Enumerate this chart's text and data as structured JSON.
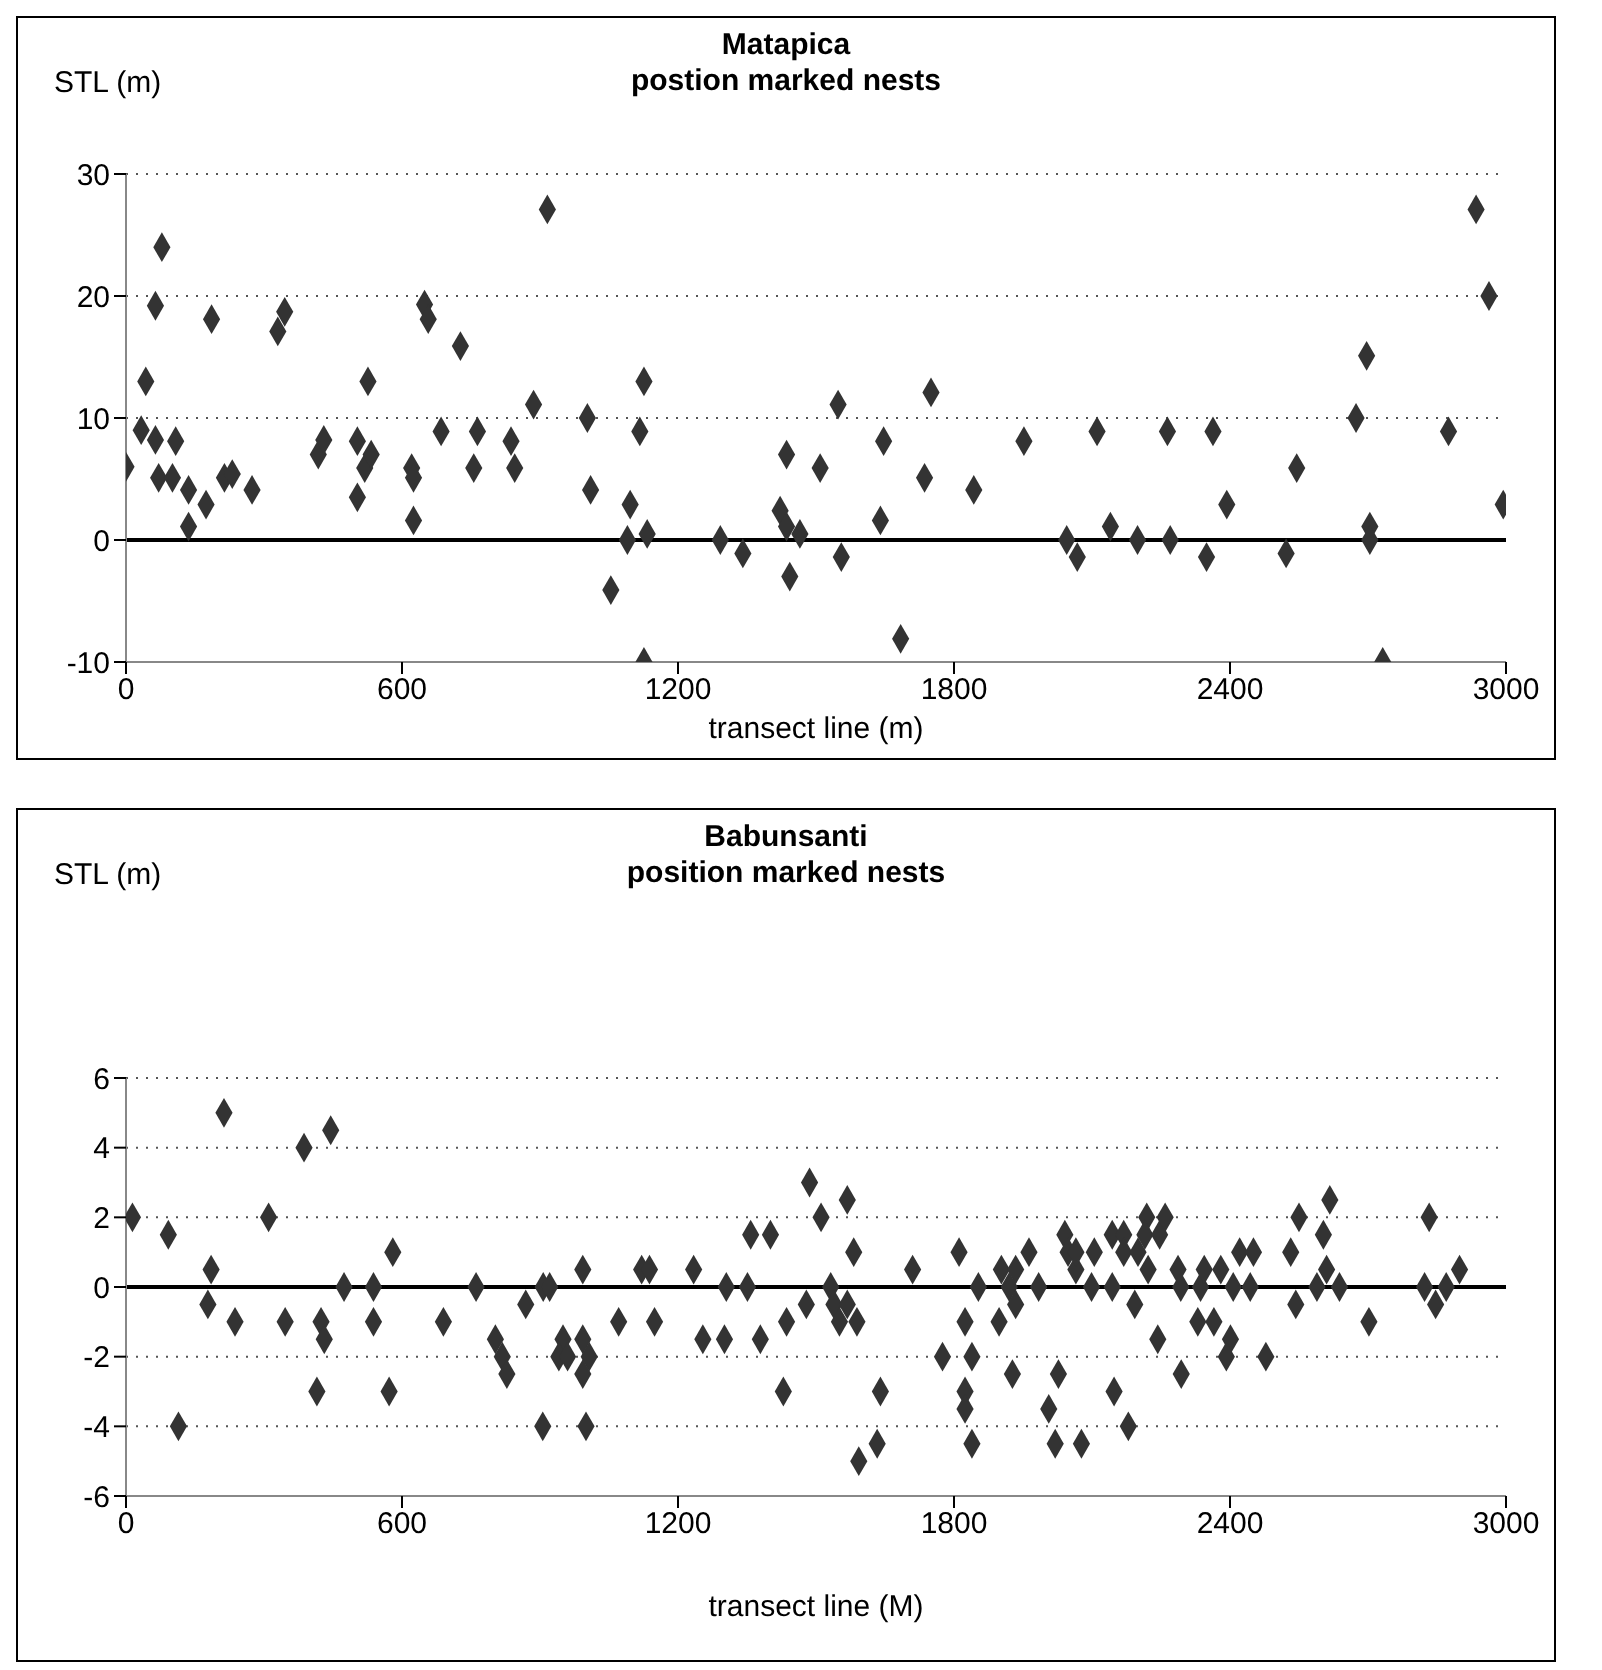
{
  "chart_data": [
    {
      "type": "scatter",
      "title": "Matapica",
      "subtitle": "postion marked nests",
      "xlabel": "transect line (m)",
      "ylabel": "STL (m)",
      "marker": "diamond",
      "grid": "y",
      "legend": false,
      "xlim": [
        0,
        3000
      ],
      "xticks": [
        0,
        600,
        1200,
        1800,
        2400,
        3000
      ],
      "ylim": [
        -10,
        30
      ],
      "yticks": [
        -10,
        0,
        10,
        20,
        30
      ],
      "ref_lines": [
        {
          "axis": "y",
          "value": 0,
          "color": "#000000"
        }
      ],
      "series": [
        {
          "color": "#333333",
          "x": [
            0,
            33,
            43,
            64,
            64,
            78,
            71,
            101,
            108,
            136,
            136,
            174,
            186,
            214,
            231,
            274,
            330,
            345,
            418,
            430,
            503,
            503,
            519,
            533,
            526,
            621,
            625,
            625,
            649,
            657,
            685,
            727,
            756,
            764,
            837,
            845,
            886,
            916,
            1003,
            1010,
            1054,
            1096,
            1090,
            1117,
            1126,
            1133,
            1126,
            1292,
            1341,
            1422,
            1436,
            1436,
            1465,
            1443,
            1509,
            1548,
            1555,
            1640,
            1647,
            1684,
            1736,
            1750,
            1843,
            1952,
            2045,
            2068,
            2111,
            2140,
            2199,
            2264,
            2270,
            2349,
            2363,
            2393,
            2522,
            2545,
            2674,
            2697,
            2704,
            2704,
            2732,
            2875,
            2935,
            2963,
            2994
          ],
          "values": [
            6,
            9,
            13,
            8.2,
            19.2,
            24,
            5.1,
            5.1,
            8.1,
            4.1,
            1.1,
            2.9,
            18.1,
            5.1,
            5.4,
            4.1,
            17.1,
            18.7,
            7,
            8.2,
            8.1,
            3.5,
            5.9,
            7,
            13,
            5.9,
            5.1,
            1.6,
            19.3,
            18.1,
            8.9,
            15.9,
            5.9,
            8.9,
            8.1,
            5.9,
            11.1,
            27.1,
            10,
            4.1,
            -4.1,
            2.9,
            0,
            8.9,
            13,
            0.5,
            -10,
            0,
            -1.1,
            2.4,
            7,
            1.1,
            0.5,
            -3,
            5.9,
            11.1,
            -1.4,
            1.6,
            8.1,
            -8.1,
            5.1,
            12.1,
            4.1,
            8.1,
            0,
            -1.4,
            8.9,
            1.1,
            0,
            8.9,
            0,
            -1.4,
            8.9,
            2.9,
            -1.1,
            5.9,
            10,
            15.1,
            1.1,
            0,
            -10,
            8.9,
            27.1,
            20,
            2.9
          ]
        }
      ]
    },
    {
      "type": "scatter",
      "title": "Babunsanti",
      "subtitle": "position marked nests",
      "xlabel": "transect line (M)",
      "ylabel": "STL (m)",
      "marker": "diamond",
      "grid": "y",
      "legend": false,
      "xlim": [
        0,
        3000
      ],
      "xticks": [
        0,
        600,
        1200,
        1800,
        2400,
        3000
      ],
      "ylim": [
        -6,
        6
      ],
      "yticks": [
        -6,
        -4,
        -2,
        0,
        2,
        4,
        6
      ],
      "ref_lines": [
        {
          "axis": "y",
          "value": 0,
          "color": "#000000"
        }
      ],
      "series": [
        {
          "color": "#333333",
          "x": [
            14,
            92,
            114,
            185,
            178,
            213,
            237,
            310,
            346,
            387,
            424,
            431,
            415,
            445,
            474,
            538,
            538,
            572,
            580,
            690,
            761,
            803,
            818,
            828,
            869,
            906,
            907,
            921,
            950,
            941,
            960,
            993,
            993,
            1007,
            993,
            1000,
            1071,
            1121,
            1138,
            1149,
            1234,
            1254,
            1301,
            1305,
            1351,
            1358,
            1401,
            1379,
            1429,
            1436,
            1479,
            1486,
            1511,
            1532,
            1539,
            1568,
            1568,
            1551,
            1589,
            1582,
            1633,
            1593,
            1640,
            1710,
            1775,
            1811,
            1824,
            1824,
            1824,
            1839,
            1839,
            1853,
            1903,
            1898,
            1934,
            1920,
            1934,
            1927,
            1963,
            1984,
            2006,
            2020,
            2027,
            2041,
            2048,
            2065,
            2065,
            2077,
            2099,
            2105,
            2144,
            2144,
            2148,
            2169,
            2169,
            2179,
            2193,
            2200,
            2219,
            2215,
            2222,
            2243,
            2247,
            2259,
            2287,
            2293,
            2294,
            2330,
            2336,
            2344,
            2365,
            2380,
            2401,
            2392,
            2407,
            2421,
            2444,
            2451,
            2478,
            2532,
            2543,
            2550,
            2589,
            2603,
            2610,
            2617,
            2638,
            2702,
            2823,
            2833,
            2847,
            2870,
            2899
          ],
          "values": [
            2,
            1.5,
            -4,
            0.5,
            -0.5,
            5,
            -1,
            2,
            -1,
            4,
            -1,
            -1.5,
            -3,
            4.5,
            0,
            0,
            -1,
            -3,
            1,
            -1,
            0,
            -1.5,
            -2,
            -2.5,
            -0.5,
            -4,
            0,
            0,
            -1.5,
            -2,
            -2,
            -1.5,
            0.5,
            -2,
            -2.5,
            -4,
            -1,
            0.5,
            0.5,
            -1,
            0.5,
            -1.5,
            -1.5,
            0,
            0,
            1.5,
            1.5,
            -1.5,
            -3,
            -1,
            -0.5,
            3,
            2,
            0,
            -0.5,
            -0.5,
            2.5,
            -1,
            -1,
            1,
            -4.5,
            -5,
            -3,
            0.5,
            -2,
            1,
            -1,
            -3,
            -3.5,
            -2,
            -4.5,
            0,
            0.5,
            -1,
            0.5,
            0,
            -0.5,
            -2.5,
            1,
            0,
            -3.5,
            -4.5,
            -2.5,
            1.5,
            1,
            0.5,
            1,
            -4.5,
            0,
            1,
            1.5,
            0,
            -3,
            1.5,
            1,
            -4,
            -0.5,
            1,
            2,
            1.5,
            0.5,
            -1.5,
            1.5,
            2,
            0.5,
            0,
            -2.5,
            -1,
            0,
            0.5,
            -1,
            0.5,
            -1.5,
            -2,
            0,
            1,
            0,
            1,
            -2,
            1,
            -0.5,
            2,
            0,
            1.5,
            0.5,
            2.5,
            0,
            -1,
            0,
            2,
            -0.5,
            0,
            0.5
          ]
        }
      ]
    }
  ]
}
